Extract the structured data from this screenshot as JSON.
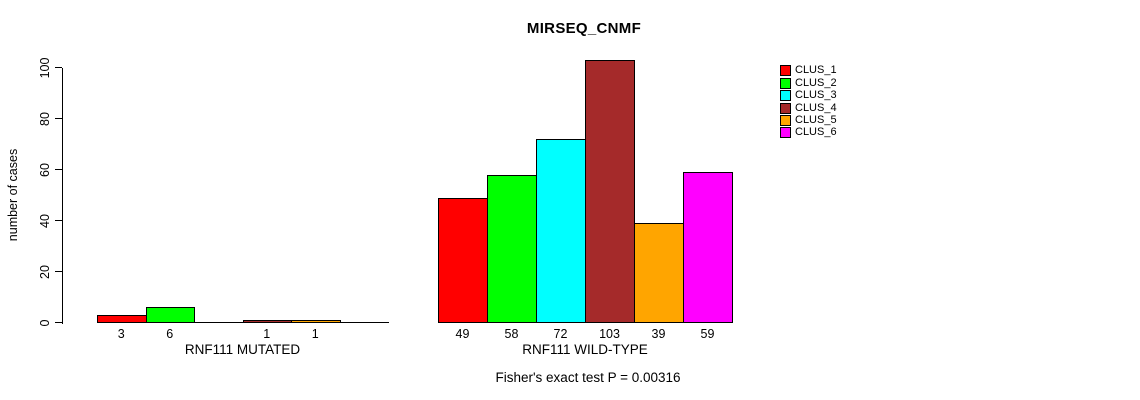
{
  "chart_data": {
    "type": "bar",
    "title": "MIRSEQ_CNMF",
    "ylabel": "number of cases",
    "ylim": [
      0,
      100
    ],
    "y_ticks": [
      0,
      20,
      40,
      60,
      80,
      100
    ],
    "grid": false,
    "legend_position": "top-right",
    "clusters": [
      {
        "name": "CLUS_1",
        "color": "#FF0000"
      },
      {
        "name": "CLUS_2",
        "color": "#00FF00"
      },
      {
        "name": "CLUS_3",
        "color": "#00FFFF"
      },
      {
        "name": "CLUS_4",
        "color": "#A52A2A"
      },
      {
        "name": "CLUS_5",
        "color": "#FFA500"
      },
      {
        "name": "CLUS_6",
        "color": "#FF00FF"
      }
    ],
    "groups": [
      {
        "label": "RNF111 MUTATED",
        "values": [
          3,
          6,
          0,
          1,
          1,
          0
        ],
        "bar_labels": [
          "3",
          "6",
          "",
          "1",
          "1",
          ""
        ]
      },
      {
        "label": "RNF111 WILD-TYPE",
        "values": [
          49,
          58,
          72,
          103,
          39,
          59
        ],
        "bar_labels": [
          "49",
          "58",
          "72",
          "103",
          "39",
          "59"
        ]
      }
    ],
    "annotation": "Fisher's exact test P = 0.00316"
  }
}
